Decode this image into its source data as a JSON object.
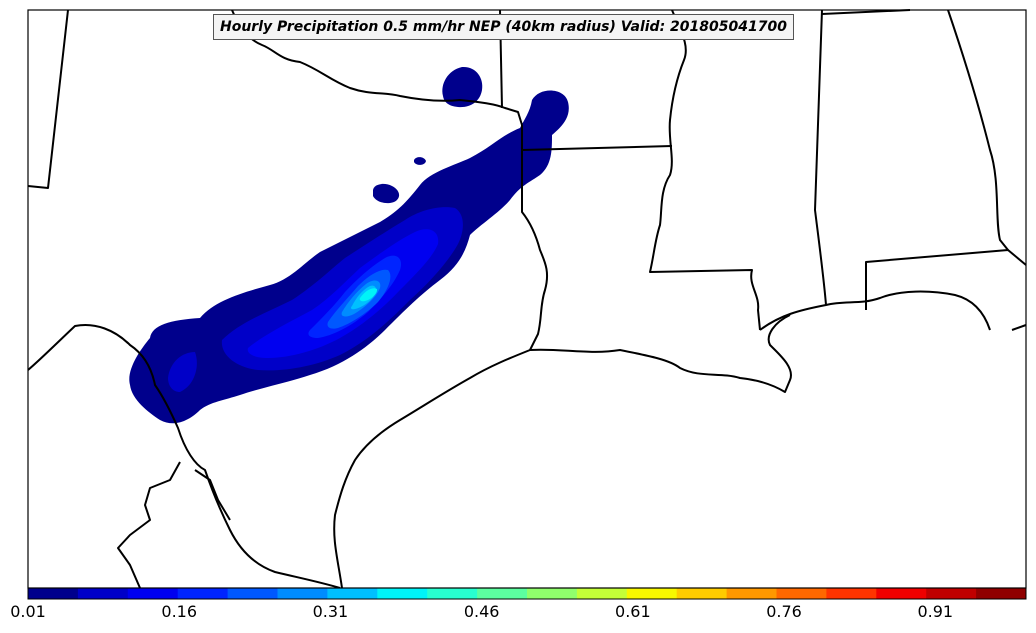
{
  "title": "Hourly Precipitation 0.5 mm/hr NEP (40km radius) Valid: 201805041700",
  "colorbar": {
    "min": 0.01,
    "max": 1.0,
    "tick_labels": [
      "0.01",
      "0.16",
      "0.31",
      "0.46",
      "0.61",
      "0.76",
      "0.91"
    ],
    "colors": [
      "#00008c",
      "#0000c8",
      "#0000f0",
      "#0024ff",
      "#0058ff",
      "#008cff",
      "#00c0ff",
      "#00f4f8",
      "#28ffd0",
      "#5cffa0",
      "#90ff6c",
      "#c4ff38",
      "#f8f800",
      "#ffcc00",
      "#ff9800",
      "#ff6800",
      "#ff3400",
      "#f00000",
      "#c00000",
      "#900000"
    ]
  },
  "colors": {
    "border": "#000000",
    "low_prob": "#00008c",
    "mid_prob": "#0000e0",
    "high_prob": "#00f4f8"
  }
}
